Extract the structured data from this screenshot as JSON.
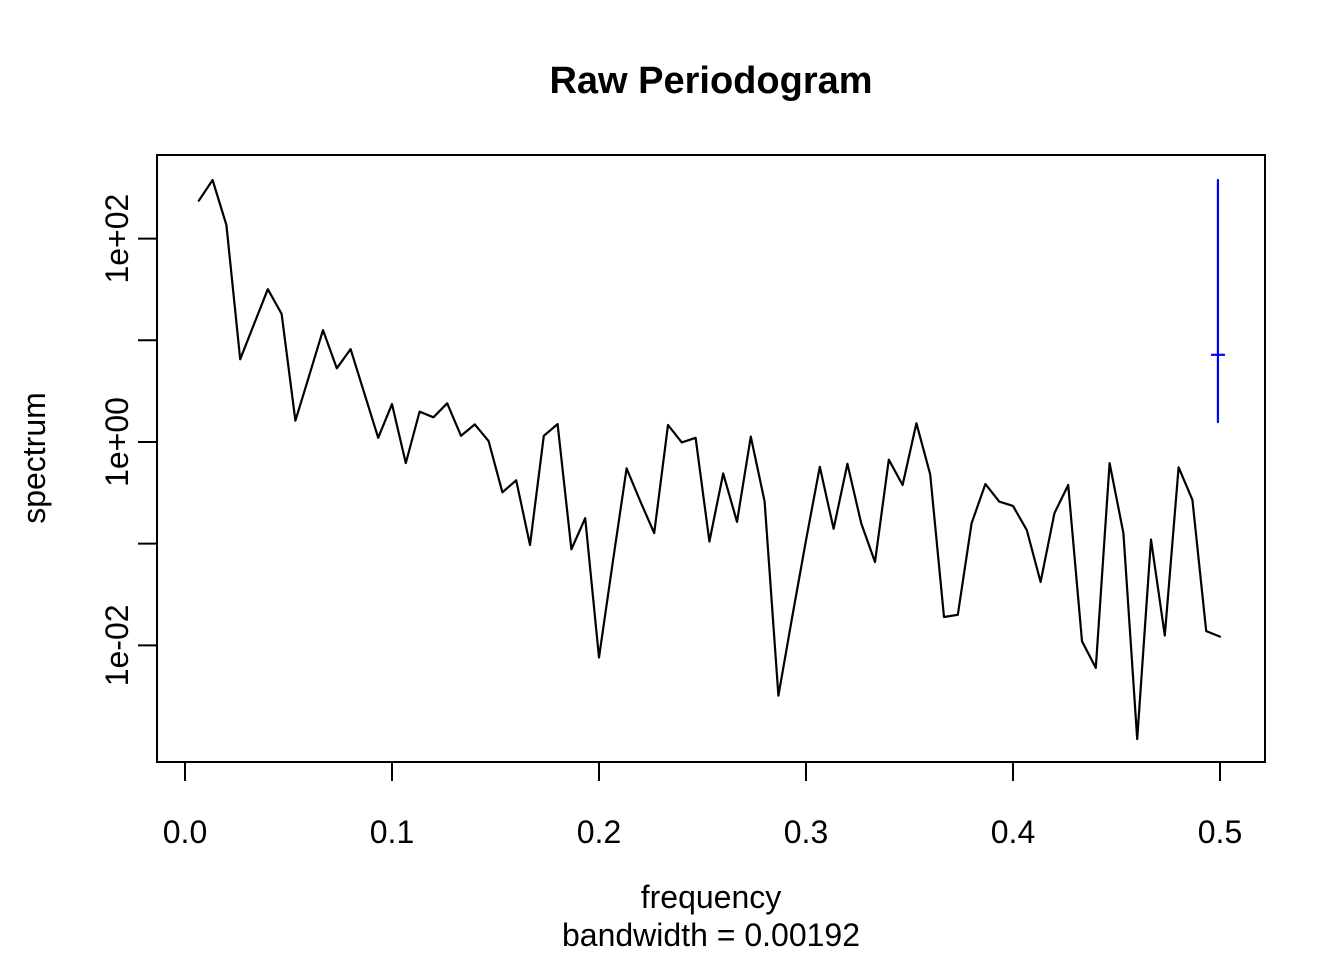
{
  "title": "Raw Periodogram",
  "x_axis": {
    "label": "frequency",
    "sub_label": "bandwidth = 0.00192",
    "ticks": [
      "0.0",
      "0.1",
      "0.2",
      "0.3",
      "0.4",
      "0.5"
    ],
    "tick_values": [
      0,
      0.1,
      0.2,
      0.3,
      0.4,
      0.5
    ]
  },
  "y_axis": {
    "label": "spectrum",
    "ticks": [
      {
        "value": 100,
        "label": "1e+02"
      },
      {
        "value": 10,
        "label": ""
      },
      {
        "value": 1,
        "label": "1e+00"
      },
      {
        "value": 0.1,
        "label": ""
      },
      {
        "value": 0.01,
        "label": "1e-02"
      }
    ]
  },
  "chart_data": {
    "type": "line",
    "title": "Raw Periodogram",
    "xlabel": "frequency",
    "xlabel_note": "bandwidth = 0.00192",
    "ylabel": "spectrum",
    "y_scale": "log10",
    "grid": "off",
    "xlim": [
      -0.01353,
      0.52174
    ],
    "ylim_log10": [
      -3.1469,
      2.8221
    ],
    "line_color": "#000000",
    "frequency": [
      0.00667,
      0.01333,
      0.02,
      0.02667,
      0.03333,
      0.04,
      0.04667,
      0.05333,
      0.06,
      0.06667,
      0.07333,
      0.08,
      0.08667,
      0.09333,
      0.1,
      0.10667,
      0.11333,
      0.12,
      0.12667,
      0.13333,
      0.14,
      0.14667,
      0.15333,
      0.16,
      0.16667,
      0.17333,
      0.18,
      0.18667,
      0.19333,
      0.2,
      0.20667,
      0.21333,
      0.22,
      0.22667,
      0.23333,
      0.24,
      0.24667,
      0.25333,
      0.26,
      0.26667,
      0.27333,
      0.28,
      0.28667,
      0.29333,
      0.3,
      0.30667,
      0.31333,
      0.32,
      0.32667,
      0.33333,
      0.34,
      0.34667,
      0.35333,
      0.36,
      0.36667,
      0.37333,
      0.38,
      0.38667,
      0.39333,
      0.4,
      0.40667,
      0.41333,
      0.42,
      0.42667,
      0.43333,
      0.44,
      0.44667,
      0.45333,
      0.46,
      0.46667,
      0.47333,
      0.48,
      0.48667,
      0.49333,
      0.5
    ],
    "spectrum": [
      236,
      377,
      136,
      6.5,
      14.4,
      31.8,
      18.2,
      1.62,
      4.5,
      12.6,
      5.3,
      8.2,
      3.0,
      1.1,
      2.36,
      0.62,
      1.99,
      1.75,
      2.4,
      1.15,
      1.49,
      1.02,
      0.32,
      0.42,
      0.097,
      1.15,
      1.5,
      0.088,
      0.178,
      0.0076,
      0.066,
      0.55,
      0.26,
      0.127,
      1.47,
      0.99,
      1.1,
      0.105,
      0.49,
      0.164,
      1.13,
      0.26,
      0.0032,
      0.019,
      0.108,
      0.57,
      0.14,
      0.61,
      0.159,
      0.066,
      0.67,
      0.378,
      1.53,
      0.48,
      0.019,
      0.02,
      0.159,
      0.386,
      0.259,
      0.235,
      0.136,
      0.042,
      0.199,
      0.378,
      0.011,
      0.006,
      0.62,
      0.127,
      0.0012,
      0.11,
      0.0125,
      0.564,
      0.27,
      0.0138,
      0.0122
    ],
    "confidence_bar": {
      "color": "#0000FF",
      "frequency": 0.499,
      "upper": 377,
      "center": 7.2,
      "lower": 1.57
    }
  }
}
